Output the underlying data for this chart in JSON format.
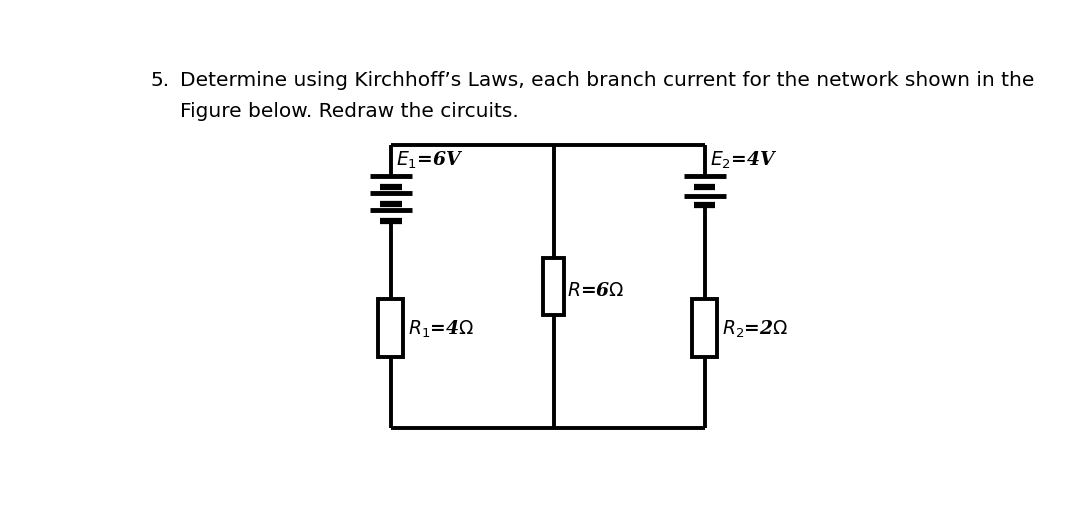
{
  "title_number": "5.",
  "title_text_line1": "Determine using Kirchhoff’s Laws, each branch current for the network shown in the",
  "title_text_line2": "Figure below. Redraw the circuits.",
  "title_fontsize": 14.5,
  "bg_color": "#ffffff",
  "line_color": "#000000",
  "text_color": "#000000",
  "circuit_label_E1": "$E_1$$=6V$",
  "circuit_label_E2": "$E_2$$=4V$",
  "circuit_label_R": "$R$$=6\\Omega$",
  "circuit_label_R1": "$R_1$$=4\\Omega$",
  "circuit_label_R2": "$R_2$$=2\\Omega$",
  "lw_main": 2.8,
  "lw_long": 3.5,
  "lw_short": 4.5,
  "xL": 3.3,
  "xM": 5.4,
  "xR": 7.35,
  "ytop": 3.95,
  "ybot": 0.28
}
